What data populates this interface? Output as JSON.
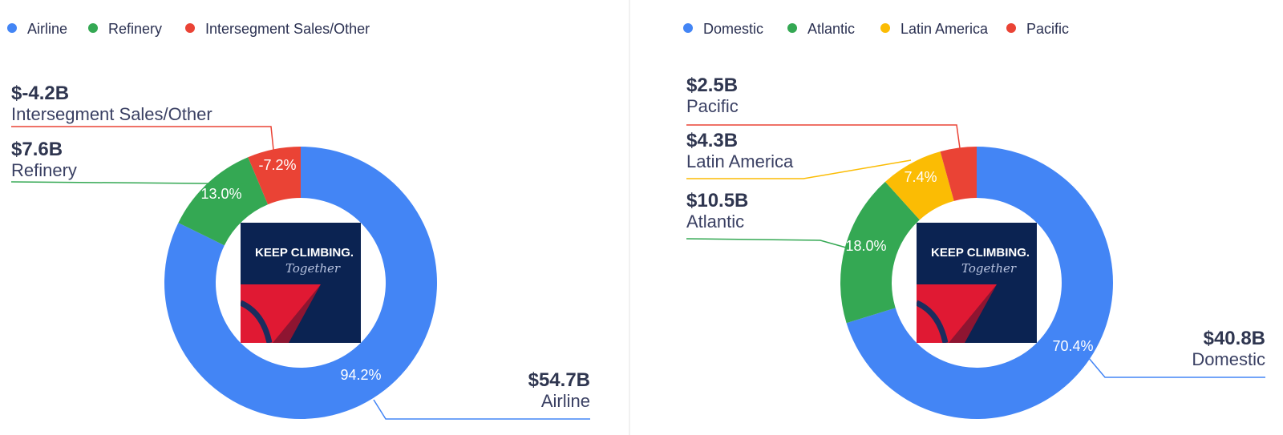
{
  "colors": {
    "blue": "#4385f5",
    "green": "#34a853",
    "yellow": "#fbbc04",
    "red": "#ea4335",
    "logo_bg": "#0b2352",
    "logo_red": "#e01933",
    "logo_maroon": "#8e1531",
    "divider": "#e3e3e3"
  },
  "logo": {
    "line1": "KEEP CLIMBING.",
    "line2": "Together"
  },
  "chart_data": [
    {
      "type": "pie",
      "donut": true,
      "legend_position": "top-left",
      "slices": [
        {
          "name": "Airline",
          "label": "$54.7B",
          "value": 54.7,
          "percent": "94.2%",
          "color": "#4385f5"
        },
        {
          "name": "Refinery",
          "label": "$7.6B",
          "value": 7.6,
          "percent": "13.0%",
          "color": "#34a853"
        },
        {
          "name": "Intersegment Sales/Other",
          "label": "$-4.2B",
          "value": -4.2,
          "percent": "-7.2%",
          "color": "#ea4335"
        }
      ]
    },
    {
      "type": "pie",
      "donut": true,
      "legend_position": "top-left",
      "slices": [
        {
          "name": "Domestic",
          "label": "$40.8B",
          "value": 40.8,
          "percent": "70.4%",
          "color": "#4385f5"
        },
        {
          "name": "Atlantic",
          "label": "$10.5B",
          "value": 10.5,
          "percent": "18.0%",
          "color": "#34a853"
        },
        {
          "name": "Latin America",
          "label": "$4.3B",
          "value": 4.3,
          "percent": "7.4%",
          "color": "#fbbc04"
        },
        {
          "name": "Pacific",
          "label": "$2.5B",
          "value": 2.5,
          "percent": "4.3%",
          "color": "#ea4335"
        }
      ]
    }
  ]
}
